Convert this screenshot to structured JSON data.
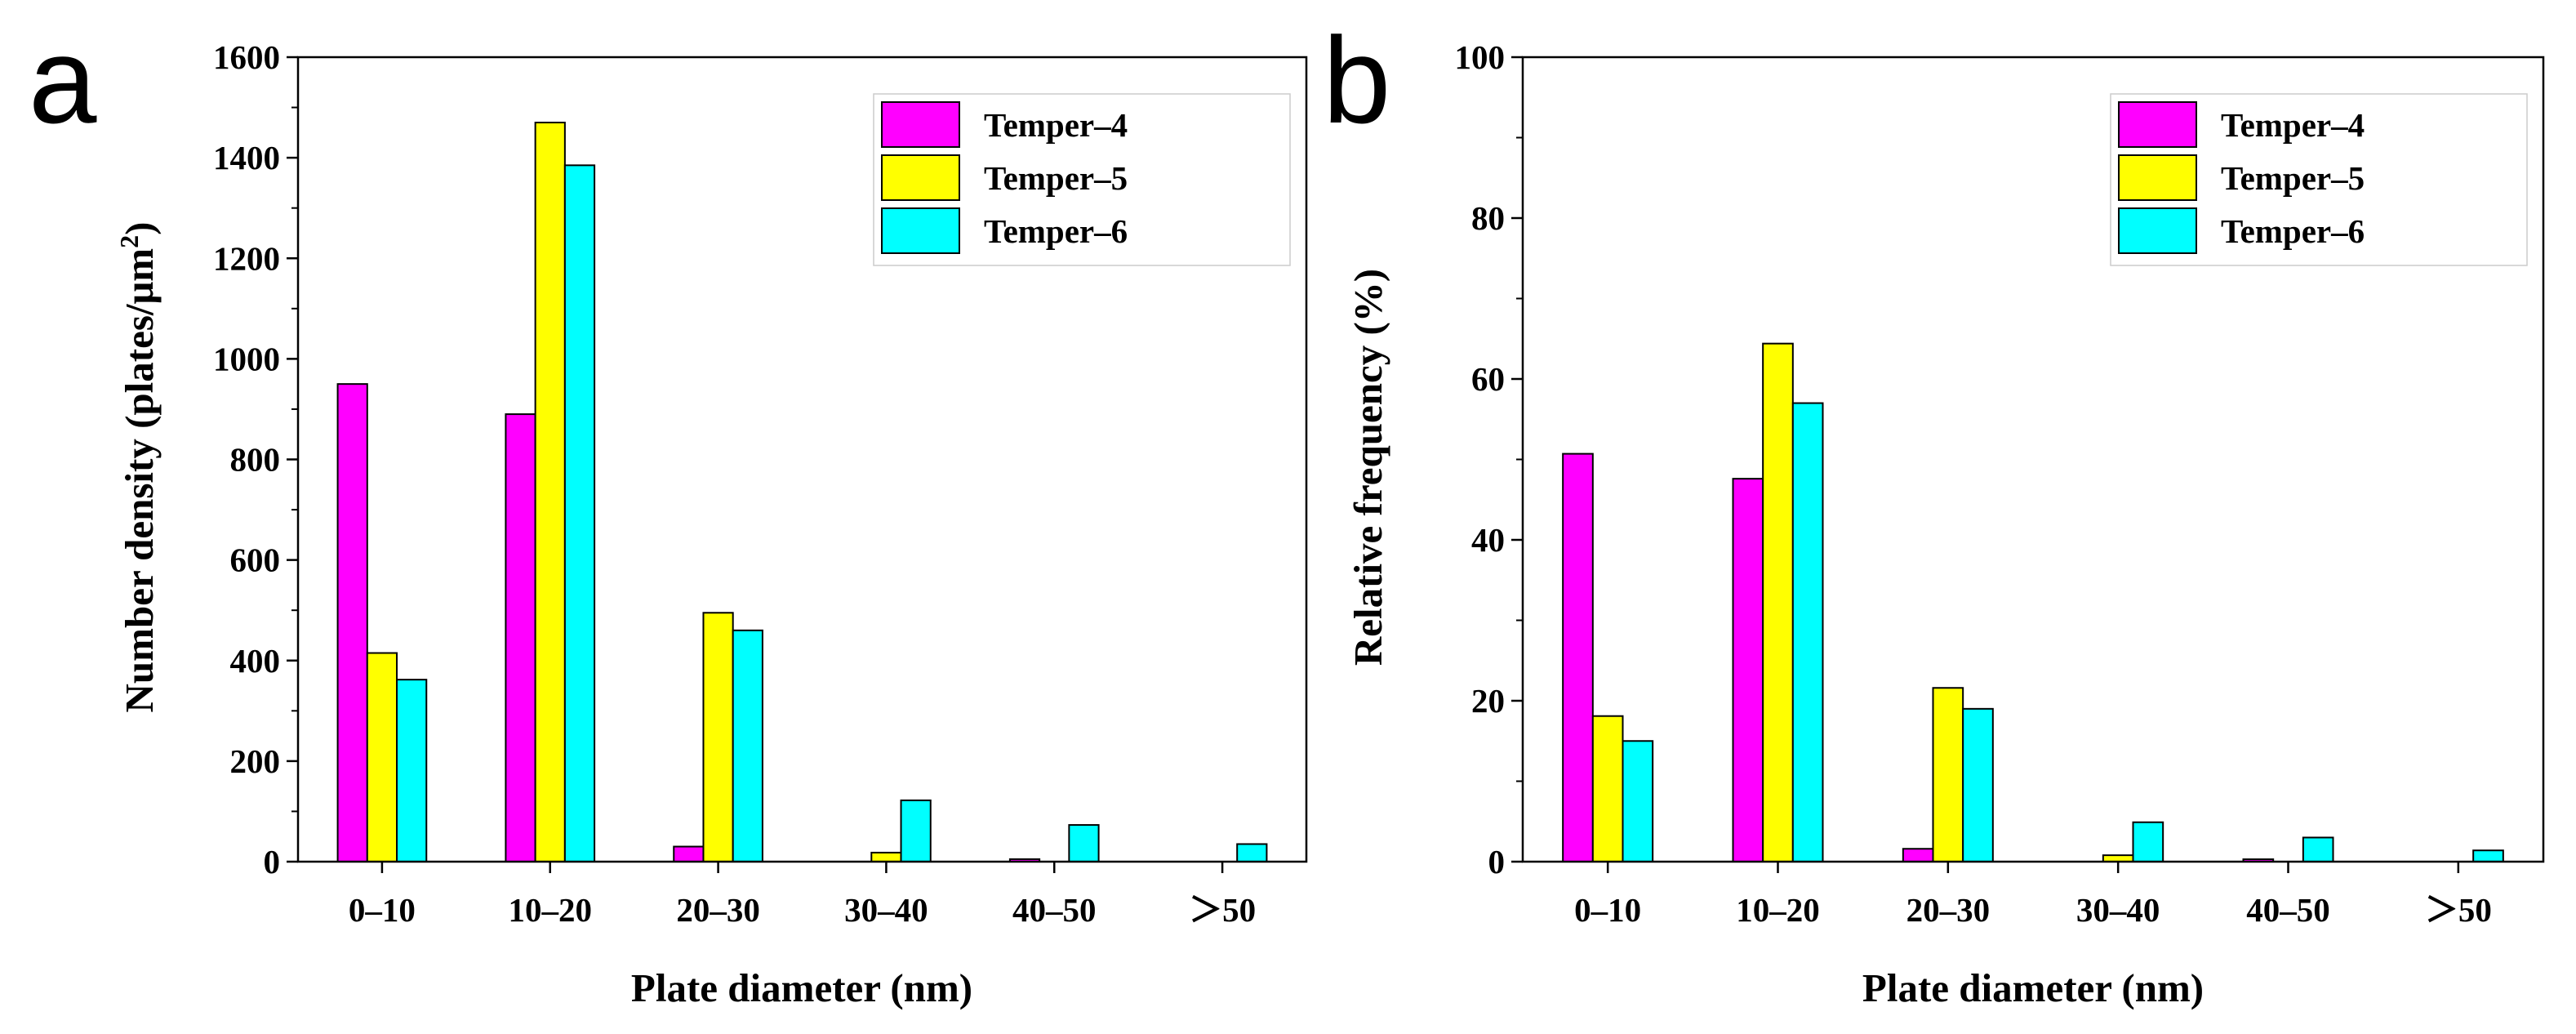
{
  "chart_data": [
    {
      "type": "bar",
      "panel_label": "a",
      "categories": [
        "0–10",
        "10–20",
        "20–30",
        "30–40",
        "40–50",
        "＞50"
      ],
      "series": [
        {
          "name": "Temper–4",
          "color": "#ff00ff",
          "values": [
            950,
            890,
            30,
            0,
            5,
            0
          ]
        },
        {
          "name": "Temper–5",
          "color": "#ffff00",
          "values": [
            415,
            1470,
            495,
            18,
            0,
            0
          ]
        },
        {
          "name": "Temper–6",
          "color": "#00ffff",
          "values": [
            362,
            1385,
            460,
            122,
            73,
            35
          ]
        }
      ],
      "xlabel": "Plate diameter (nm)",
      "ylabel": "Number density (plates/μm",
      "ylabel_sup": "2",
      "ylabel_end": ")",
      "ylim": [
        0,
        1600
      ],
      "yticks": [
        "0",
        "200",
        "400",
        "600",
        "800",
        "1000",
        "1200",
        "1400",
        "1600"
      ],
      "legend_position": "top-right"
    },
    {
      "type": "bar",
      "panel_label": "b",
      "categories": [
        "0–10",
        "10–20",
        "20–30",
        "30–40",
        "40–50",
        "＞50"
      ],
      "series": [
        {
          "name": "Temper–4",
          "color": "#ff00ff",
          "values": [
            50.7,
            47.6,
            1.6,
            0,
            0.3,
            0
          ]
        },
        {
          "name": "Temper–5",
          "color": "#ffff00",
          "values": [
            18.1,
            64.4,
            21.6,
            0.8,
            0,
            0
          ]
        },
        {
          "name": "Temper–6",
          "color": "#00ffff",
          "values": [
            15.0,
            57.0,
            19.0,
            4.9,
            3.0,
            1.4
          ]
        }
      ],
      "xlabel": "Plate diameter (nm)",
      "ylabel": "Relative frequency (%)",
      "ylabel_sup": "",
      "ylabel_end": "",
      "ylim": [
        0,
        100
      ],
      "yticks": [
        "0",
        "20",
        "40",
        "60",
        "80",
        "100"
      ],
      "legend_position": "top-right"
    }
  ]
}
